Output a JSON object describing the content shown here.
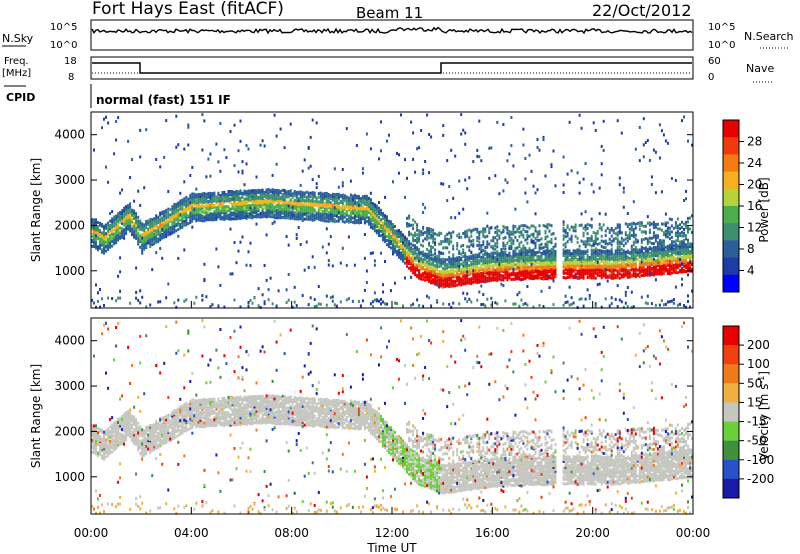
{
  "header": {
    "title": "Fort Hays East (fitACF)",
    "beam": "Beam 11",
    "date": "22/Oct/2012"
  },
  "params": {
    "nsky_label": "N.Sky",
    "nsearch_label": "N.Search",
    "freq_label_1": "Freq.",
    "freq_label_2": "[MHz]",
    "nave_label": "Nave",
    "cpid_label": "CPID",
    "cpid_value": "normal (fast) 151 IF",
    "noise_ticks": [
      "10^5",
      "10^0"
    ],
    "freq_ticks": [
      "18",
      "8"
    ],
    "nave_ticks": [
      "60",
      "0"
    ]
  },
  "chart_data": [
    {
      "type": "heatmap",
      "title": "",
      "xlabel": "",
      "ylabel": "Slant Range [km]",
      "x_range": [
        "00:00",
        "24:00"
      ],
      "ylim": [
        180,
        4500
      ],
      "yticks": [
        "1000",
        "2000",
        "3000",
        "4000"
      ],
      "colorbar": {
        "label": "Power [dB]",
        "ticks": [
          "4",
          "8",
          "12",
          "16",
          "20",
          "24",
          "28"
        ],
        "range": [
          0,
          30
        ],
        "colors": [
          "#0000ff",
          "#1e3ca8",
          "#2a5f9a",
          "#3e8f6e",
          "#4cae4c",
          "#b8d23a",
          "#f4b01e",
          "#f47a12",
          "#f03a0c",
          "#e80000"
        ]
      },
      "scatter_band": [
        {
          "time": "00:00",
          "range": 1800
        },
        {
          "time": "00:30",
          "range": 1650
        },
        {
          "time": "01:30",
          "range": 2150
        },
        {
          "time": "02:00",
          "range": 1700
        },
        {
          "time": "04:00",
          "range": 2350
        },
        {
          "time": "07:00",
          "range": 2450
        },
        {
          "time": "11:00",
          "range": 2300
        },
        {
          "time": "13:00",
          "range": 1100
        },
        {
          "time": "14:00",
          "range": 900
        },
        {
          "time": "16:00",
          "range": 1050
        },
        {
          "time": "18:45",
          "range": 1100
        },
        {
          "time": "21:00",
          "range": 1100
        },
        {
          "time": "24:00",
          "range": 1250
        }
      ]
    },
    {
      "type": "heatmap",
      "title": "",
      "xlabel": "Time UT",
      "ylabel": "Slant Range [km]",
      "x_range": [
        "00:00",
        "24:00"
      ],
      "xticks": [
        "00:00",
        "04:00",
        "08:00",
        "12:00",
        "16:00",
        "20:00",
        "00:00"
      ],
      "ylim": [
        180,
        4500
      ],
      "yticks": [
        "1000",
        "2000",
        "3000",
        "4000"
      ],
      "colorbar": {
        "label": "Velocity [m s^-1]",
        "ticks": [
          "200",
          "100",
          "50",
          "15",
          "-15",
          "-50",
          "-100",
          "-200"
        ],
        "range": [
          -250,
          250
        ],
        "colors": [
          "#1a1aa8",
          "#2a52c8",
          "#3f8f3f",
          "#6ad03a",
          "#c6c6c0",
          "#f0b040",
          "#f07a18",
          "#f04010",
          "#e80000"
        ]
      }
    }
  ]
}
